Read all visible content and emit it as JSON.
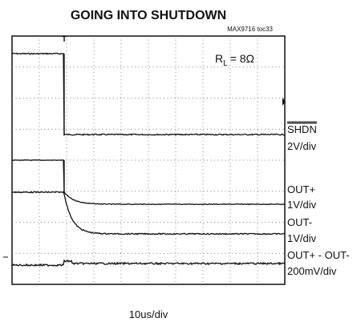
{
  "header": {
    "title": "GOING INTO SHUTDOWN",
    "part": "MAX9716 toc33"
  },
  "scope": {
    "load_label": "R",
    "load_sub": "L",
    "load_value": "= 8Ω",
    "time_scale": "10us/div"
  },
  "channels": [
    {
      "name": "SHDN",
      "scale": "2V/div"
    },
    {
      "name": "OUT+",
      "scale": "1V/div"
    },
    {
      "name": "OUT-",
      "scale": "1V/div"
    },
    {
      "name": "OUT+ - OUT-",
      "scale": "200mV/div"
    }
  ]
}
